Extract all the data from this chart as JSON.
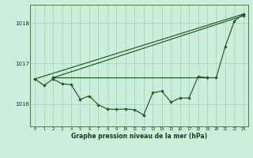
{
  "bg_color": "#cceedd",
  "grid_color": "#aaccbb",
  "line_color": "#1a5c1a",
  "xlabel": "Graphe pression niveau de la mer (hPa)",
  "ylabel_ticks": [
    1016,
    1017,
    1018
  ],
  "xlim": [
    -0.5,
    23.5
  ],
  "ylim": [
    1015.45,
    1018.45
  ],
  "line1_x": [
    0,
    23
  ],
  "line1_y": [
    1016.62,
    1018.22
  ],
  "line2_x": [
    2,
    23
  ],
  "line2_y": [
    1016.65,
    1018.18
  ],
  "line3_x": [
    2,
    19
  ],
  "line3_y": [
    1016.65,
    1016.65
  ],
  "jagged_x": [
    0,
    1,
    2,
    3,
    4,
    5,
    6,
    7,
    8,
    9,
    10,
    11,
    12,
    13,
    14,
    15,
    16,
    17,
    18,
    19,
    20,
    21,
    22,
    23
  ],
  "jagged_y": [
    1016.62,
    1016.46,
    1016.62,
    1016.5,
    1016.48,
    1016.12,
    1016.2,
    1015.98,
    1015.88,
    1015.87,
    1015.88,
    1015.86,
    1015.73,
    1016.28,
    1016.32,
    1016.05,
    1016.15,
    1016.15,
    1016.68,
    1016.65,
    1016.65,
    1017.42,
    1018.05,
    1018.22
  ]
}
